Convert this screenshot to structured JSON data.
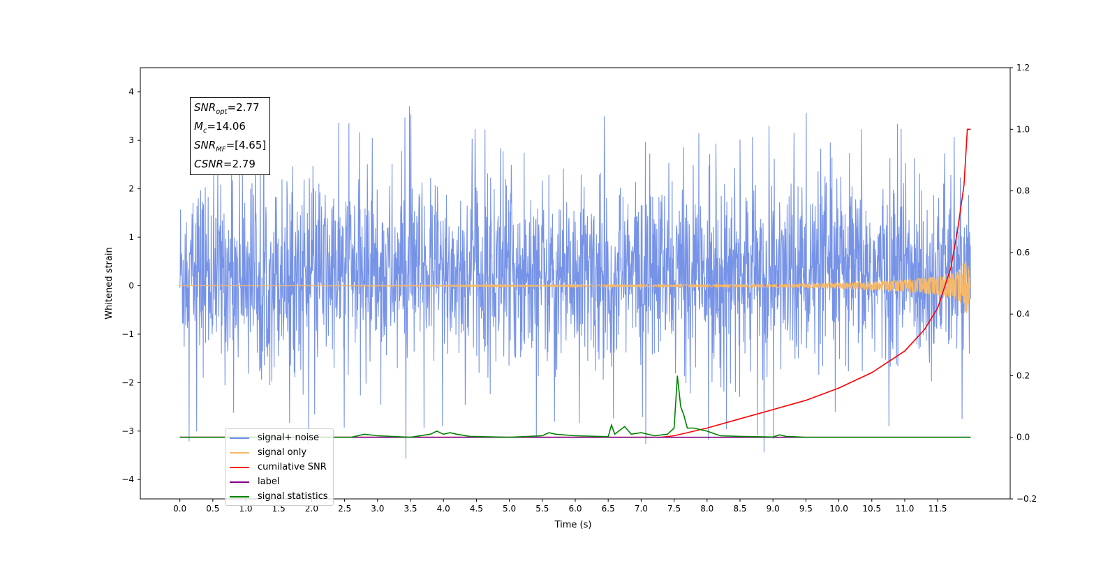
{
  "chart_data": {
    "type": "line",
    "xlabel": "Time (s)",
    "ylabel": "Whitened strain",
    "xlim": [
      -0.6,
      12.6
    ],
    "ylim": [
      -4.4,
      4.5
    ],
    "y2lim": [
      -0.2,
      1.2
    ],
    "xticks": [
      "0.0",
      "0.5",
      "1.0",
      "1.5",
      "2.0",
      "2.5",
      "3.0",
      "3.5",
      "4.0",
      "4.5",
      "5.0",
      "5.5",
      "6.0",
      "6.5",
      "7.0",
      "7.5",
      "8.0",
      "8.5",
      "9.0",
      "9.5",
      "10.0",
      "10.5",
      "11.0",
      "11.5"
    ],
    "yticks": [
      "−4",
      "−3",
      "−2",
      "−1",
      "0",
      "1",
      "2",
      "3",
      "4"
    ],
    "y2ticks": [
      "−0.2",
      "0.0",
      "0.2",
      "0.4",
      "0.6",
      "0.8",
      "1.0",
      "1.2"
    ],
    "grid": false,
    "legend_position": "lower-left",
    "annotations": [
      {
        "main": "SNR",
        "sub": "opt",
        "value": "=2.77"
      },
      {
        "main": "M",
        "sub": "c",
        "value": "=14.06"
      },
      {
        "main": "SNR",
        "sub": "MF",
        "value": "=[4.65]"
      },
      {
        "main": "CSNR",
        "sub": "",
        "value": "=2.79"
      }
    ],
    "series": [
      {
        "name": "signal+ noise",
        "color": "#6f8de6",
        "axis": "left",
        "description": "whitened noise with embedded signal, envelope roughly ±2.5 with spikes to ±4",
        "x": [
          0.0,
          1.0,
          2.0,
          3.0,
          3.5,
          4.0,
          5.0,
          6.0,
          7.0,
          7.6,
          8.0,
          9.0,
          10.0,
          10.5,
          11.0,
          11.5,
          12.0
        ],
        "y_max": [
          2.0,
          2.6,
          3.5,
          3.4,
          4.1,
          3.3,
          3.2,
          3.6,
          3.5,
          2.8,
          3.3,
          3.6,
          3.7,
          4.1,
          3.6,
          4.0,
          3.5
        ],
        "y_min": [
          -3.5,
          -3.2,
          -3.3,
          -3.5,
          -3.6,
          -3.4,
          -3.3,
          -3.4,
          -3.2,
          -3.8,
          -3.6,
          -3.7,
          -3.5,
          -3.8,
          -3.6,
          -3.5,
          -2.9
        ]
      },
      {
        "name": "signal only",
        "color": "#f5b869",
        "axis": "left",
        "x": [
          0,
          9.0,
          10.0,
          11.0,
          11.5,
          11.8,
          11.95,
          12.0
        ],
        "amplitude": [
          0.0,
          0.03,
          0.06,
          0.12,
          0.2,
          0.3,
          0.6,
          0.0
        ]
      },
      {
        "name": "cumilative SNR",
        "color": "#ff0000",
        "axis": "right",
        "x": [
          0,
          7.3,
          7.5,
          8.0,
          8.5,
          9.0,
          9.5,
          10.0,
          10.5,
          11.0,
          11.3,
          11.5,
          11.7,
          11.8,
          11.9,
          11.95,
          12.0
        ],
        "y": [
          0.0,
          0.0,
          0.005,
          0.03,
          0.06,
          0.09,
          0.12,
          0.16,
          0.21,
          0.28,
          0.35,
          0.42,
          0.55,
          0.67,
          0.82,
          1.0,
          1.0
        ]
      },
      {
        "name": "label",
        "color": "#800080",
        "axis": "right",
        "x": [
          0,
          12.0
        ],
        "y": [
          0.0,
          0.0
        ]
      },
      {
        "name": "signal statistics",
        "color": "#008000",
        "axis": "right",
        "x": [
          0,
          2.6,
          2.8,
          3.0,
          3.5,
          3.8,
          3.9,
          4.0,
          4.1,
          4.2,
          4.4,
          5.0,
          5.5,
          5.6,
          5.7,
          6.0,
          6.5,
          6.55,
          6.6,
          6.75,
          6.85,
          7.0,
          7.2,
          7.4,
          7.5,
          7.55,
          7.6,
          7.65,
          7.7,
          7.8,
          8.0,
          8.2,
          8.5,
          9.0,
          9.1,
          9.2,
          9.5,
          12.0
        ],
        "y": [
          0.0,
          0.0,
          0.01,
          0.005,
          0.0,
          0.01,
          0.02,
          0.01,
          0.015,
          0.01,
          0.003,
          0.0,
          0.005,
          0.015,
          0.01,
          0.005,
          0.002,
          0.04,
          0.01,
          0.035,
          0.01,
          0.015,
          0.005,
          0.01,
          0.03,
          0.2,
          0.1,
          0.07,
          0.03,
          0.03,
          0.02,
          0.005,
          0.003,
          0.001,
          0.008,
          0.003,
          0.0,
          0.0
        ]
      }
    ]
  }
}
